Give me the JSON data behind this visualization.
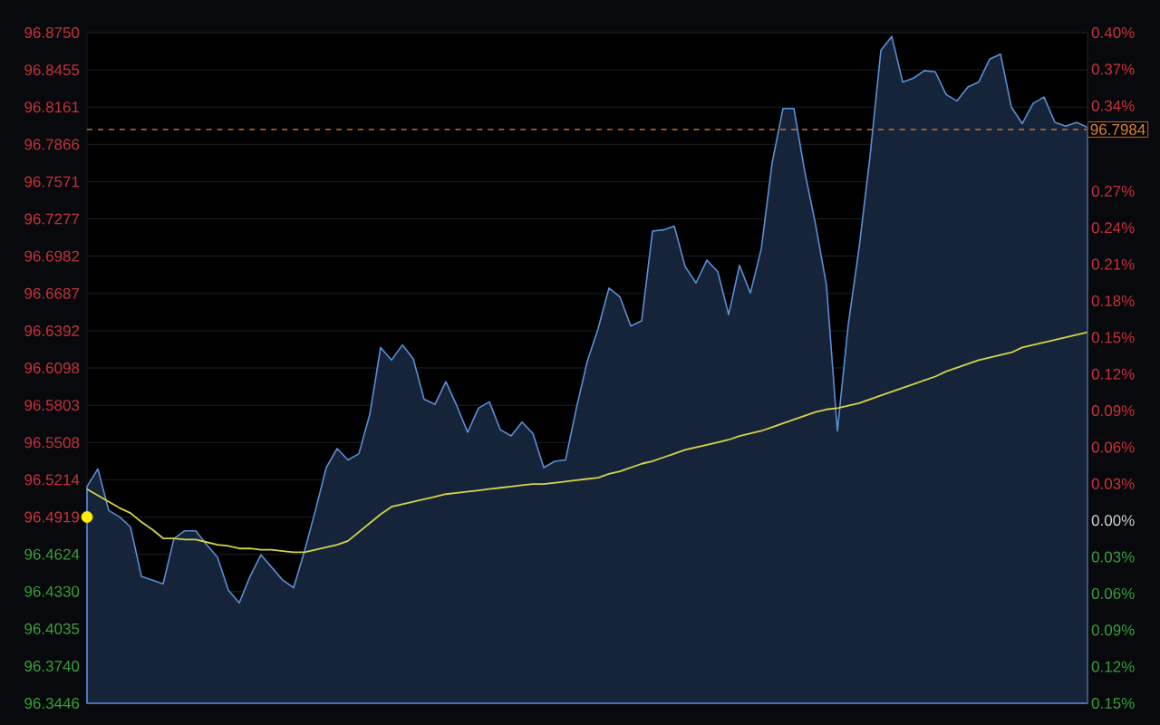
{
  "chart_data": {
    "type": "line",
    "categories": [
      null,
      null,
      null,
      null,
      null,
      null,
      null,
      null,
      null,
      null,
      null,
      null,
      null,
      null,
      null,
      null,
      null,
      null,
      null,
      null,
      null,
      null,
      null,
      null,
      null,
      null,
      null,
      null,
      null,
      null,
      null,
      null,
      null,
      null,
      null,
      null,
      null,
      null,
      null,
      null,
      null,
      null,
      null,
      null,
      null,
      null,
      null,
      null,
      null,
      null,
      null,
      null,
      null,
      null,
      null,
      null,
      null,
      null,
      null,
      null,
      null,
      null,
      null,
      null,
      null,
      null,
      null,
      null,
      null,
      null,
      null,
      null,
      null,
      null,
      null,
      null,
      null,
      null,
      null,
      null,
      null,
      null,
      null,
      null,
      null,
      null,
      null,
      null,
      null,
      null,
      null,
      null,
      null
    ],
    "ylim": [
      96.3446,
      96.875
    ],
    "yticks": [
      {
        "value": 96.875,
        "label": "96.8750"
      },
      {
        "value": 96.8455,
        "label": "96.8455"
      },
      {
        "value": 96.8161,
        "label": "96.8161"
      },
      {
        "value": 96.7866,
        "label": "96.7866"
      },
      {
        "value": 96.7571,
        "label": "96.7571"
      },
      {
        "value": 96.7277,
        "label": "96.7277"
      },
      {
        "value": 96.6982,
        "label": "96.6982"
      },
      {
        "value": 96.6687,
        "label": "96.6687"
      },
      {
        "value": 96.6392,
        "label": "96.6392"
      },
      {
        "value": 96.6098,
        "label": "96.6098"
      },
      {
        "value": 96.5803,
        "label": "96.5803"
      },
      {
        "value": 96.5508,
        "label": "96.5508"
      },
      {
        "value": 96.5214,
        "label": "96.5214"
      },
      {
        "value": 96.4919,
        "label": "96.4919"
      },
      {
        "value": 96.4624,
        "label": "96.4624"
      },
      {
        "value": 96.433,
        "label": "96.4330"
      },
      {
        "value": 96.4035,
        "label": "96.4035"
      },
      {
        "value": 96.374,
        "label": "96.3740"
      },
      {
        "value": 96.3446,
        "label": "96.3446"
      }
    ],
    "y2lim": [
      -0.15,
      0.4
    ],
    "y2ticks": [
      {
        "value": 0.4,
        "label": "0.40%"
      },
      {
        "value": 0.37,
        "label": "0.37%"
      },
      {
        "value": 0.34,
        "label": "0.34%"
      },
      {
        "value": 0.27,
        "label": "0.27%"
      },
      {
        "value": 0.24,
        "label": "0.24%"
      },
      {
        "value": 0.21,
        "label": "0.21%"
      },
      {
        "value": 0.18,
        "label": "0.18%"
      },
      {
        "value": 0.15,
        "label": "0.15%"
      },
      {
        "value": 0.12,
        "label": "0.12%"
      },
      {
        "value": 0.09,
        "label": "0.09%"
      },
      {
        "value": 0.06,
        "label": "0.06%"
      },
      {
        "value": 0.03,
        "label": "0.03%"
      },
      {
        "value": 0,
        "label": "0.00%"
      },
      {
        "value": -0.03,
        "label": "0.03%"
      },
      {
        "value": -0.06,
        "label": "0.06%"
      },
      {
        "value": -0.09,
        "label": "0.09%"
      },
      {
        "value": -0.12,
        "label": "0.12%"
      },
      {
        "value": -0.15,
        "label": "0.15%"
      }
    ],
    "grid": "y",
    "ref_lines": [
      {
        "axis": "y",
        "value": 96.7984,
        "label": "96.7984",
        "color": "#e0863a",
        "line_style": "dashed"
      }
    ],
    "series": [
      {
        "type": "area",
        "color": "#5b8fd6",
        "values": [
          96.516,
          96.53,
          96.497,
          96.492,
          96.484,
          96.445,
          96.442,
          96.439,
          96.475,
          96.481,
          96.481,
          96.47,
          96.46,
          96.434,
          96.424,
          96.445,
          96.462,
          96.452,
          96.442,
          96.436,
          96.465,
          96.497,
          96.531,
          96.546,
          96.537,
          96.542,
          96.573,
          96.626,
          96.616,
          96.628,
          96.617,
          96.585,
          96.581,
          96.599,
          96.58,
          96.559,
          96.578,
          96.583,
          96.561,
          96.556,
          96.567,
          96.558,
          96.531,
          96.536,
          96.537,
          96.578,
          96.615,
          96.641,
          96.673,
          96.666,
          96.643,
          96.647,
          96.718,
          96.719,
          96.722,
          96.69,
          96.677,
          96.695,
          96.686,
          96.652,
          96.691,
          96.669,
          96.704,
          96.772,
          96.815,
          96.815,
          96.765,
          96.723,
          96.675,
          96.56,
          96.644,
          96.705,
          96.777,
          96.861,
          96.872,
          96.836,
          96.839,
          96.845,
          96.844,
          96.826,
          96.821,
          96.832,
          96.836,
          96.854,
          96.858,
          96.816,
          96.803,
          96.819,
          96.824,
          96.804,
          96.801,
          96.804,
          96.8
        ]
      },
      {
        "color": "#d4d44a",
        "values": [
          96.514,
          96.509,
          96.504,
          96.499,
          96.495,
          96.488,
          96.482,
          96.475,
          96.475,
          96.474,
          96.474,
          96.472,
          96.47,
          96.469,
          96.467,
          96.467,
          96.466,
          96.466,
          96.465,
          96.464,
          96.464,
          96.466,
          96.468,
          96.47,
          96.473,
          96.48,
          96.487,
          96.494,
          96.5,
          96.502,
          96.504,
          96.506,
          96.508,
          96.51,
          96.511,
          96.512,
          96.513,
          96.514,
          96.515,
          96.516,
          96.517,
          96.518,
          96.518,
          96.519,
          96.52,
          96.521,
          96.522,
          96.523,
          96.526,
          96.528,
          96.531,
          96.534,
          96.536,
          96.539,
          96.542,
          96.545,
          96.547,
          96.549,
          96.551,
          96.553,
          96.556,
          96.558,
          96.56,
          96.563,
          96.566,
          96.569,
          96.572,
          96.575,
          96.577,
          96.578,
          96.58,
          96.582,
          96.585,
          96.588,
          96.591,
          96.594,
          96.597,
          96.6,
          96.603,
          96.607,
          96.61,
          96.613,
          96.616,
          96.618,
          96.62,
          96.622,
          96.626,
          96.628,
          96.63,
          96.632,
          96.634,
          96.636,
          96.638
        ]
      },
      {
        "type": "scatter",
        "color": "#ffee00",
        "marker": "circle",
        "values": [
          96.4919,
          null,
          null,
          null,
          null,
          null,
          null,
          null,
          null,
          null,
          null,
          null,
          null,
          null,
          null,
          null,
          null,
          null,
          null,
          null,
          null,
          null,
          null,
          null,
          null,
          null,
          null,
          null,
          null,
          null,
          null,
          null,
          null,
          null,
          null,
          null,
          null,
          null,
          null,
          null,
          null,
          null,
          null,
          null,
          null,
          null,
          null,
          null,
          null,
          null,
          null,
          null,
          null,
          null,
          null,
          null,
          null,
          null,
          null,
          null,
          null,
          null,
          null,
          null,
          null,
          null,
          null,
          null,
          null,
          null,
          null,
          null,
          null,
          null,
          null,
          null,
          null,
          null,
          null,
          null,
          null,
          null,
          null,
          null,
          null,
          null,
          null,
          null,
          null,
          null,
          null,
          null,
          null
        ]
      }
    ]
  }
}
